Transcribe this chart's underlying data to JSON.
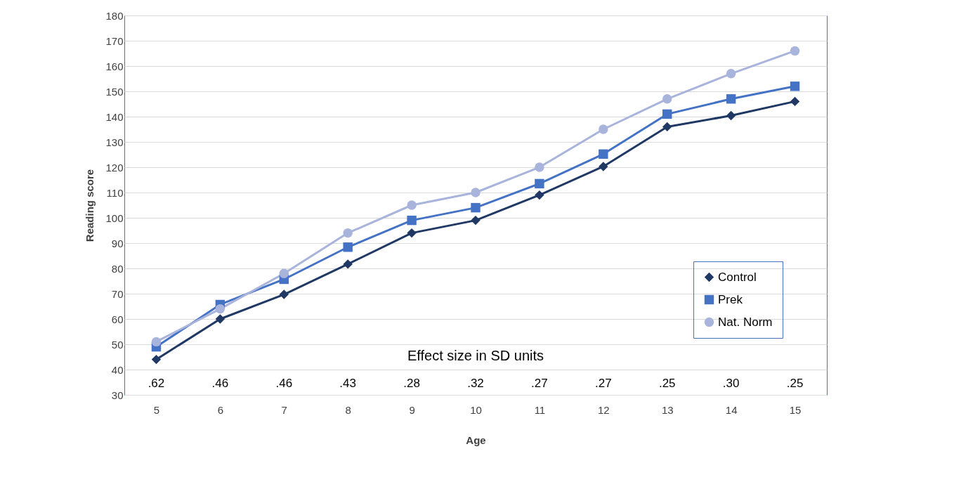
{
  "chart_data": {
    "type": "line",
    "xlabel": "Age",
    "ylabel": "Reading score",
    "categories": [
      "5",
      "6",
      "7",
      "8",
      "9",
      "10",
      "11",
      "12",
      "13",
      "14",
      "15"
    ],
    "series": [
      {
        "name": "Control",
        "color": "#203864",
        "marker": "diamond",
        "values": [
          44,
          60,
          69.7,
          81.7,
          94,
          99,
          109,
          120.3,
          136,
          140.4,
          146
        ]
      },
      {
        "name": "Prek",
        "color": "#4472c4",
        "marker": "square",
        "values": [
          49,
          65.7,
          75.7,
          88.4,
          99,
          104,
          113.5,
          125.2,
          141,
          147,
          152
        ]
      },
      {
        "name": "Nat. Norm",
        "color": "#a9b4dc",
        "marker": "circle",
        "values": [
          51,
          64,
          78,
          94,
          105,
          110,
          120,
          135,
          147,
          157,
          166
        ]
      }
    ],
    "ylim": [
      30,
      180
    ],
    "yticks": [
      30,
      40,
      50,
      60,
      70,
      80,
      90,
      100,
      110,
      120,
      130,
      140,
      150,
      160,
      170,
      180
    ],
    "grid": "y",
    "legend": "bottom right",
    "annotations": [
      "Effect size in SD units",
      ".62",
      ".46",
      ".46",
      ".43",
      ".28",
      ".32",
      ".27",
      ".27",
      ".25",
      ".30",
      ".25"
    ]
  }
}
